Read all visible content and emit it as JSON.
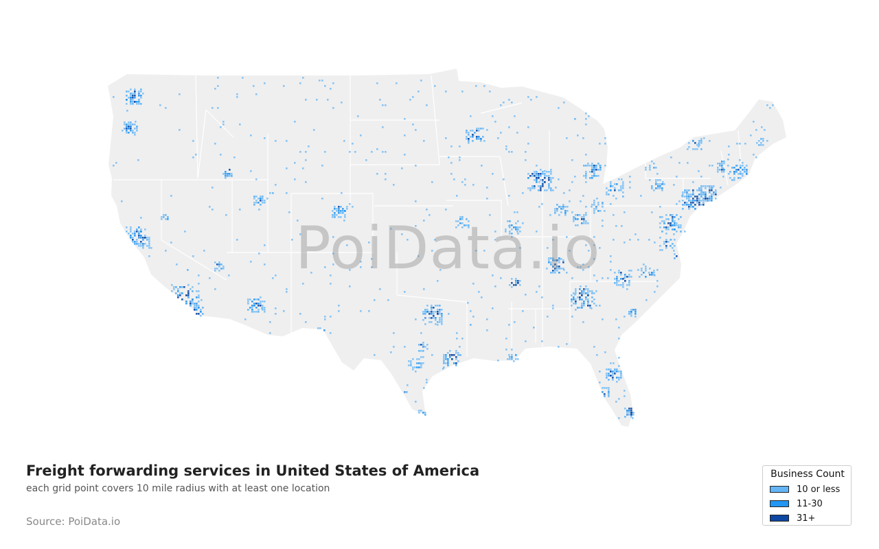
{
  "map": {
    "title": "Freight forwarding services in United States of America",
    "subtitle": "each grid point covers 10 mile radius with at least one location",
    "source": "Source: PoiData.io",
    "watermark": "PoiData.io",
    "land_color": "#efefef",
    "border_color": "#ffffff",
    "legend": {
      "title": "Business Count",
      "items": [
        {
          "label": "10 or less",
          "color": "#64b5f6"
        },
        {
          "label": "11-30",
          "color": "#2196f3"
        },
        {
          "label": "31+",
          "color": "#0d47a1"
        }
      ]
    }
  }
}
